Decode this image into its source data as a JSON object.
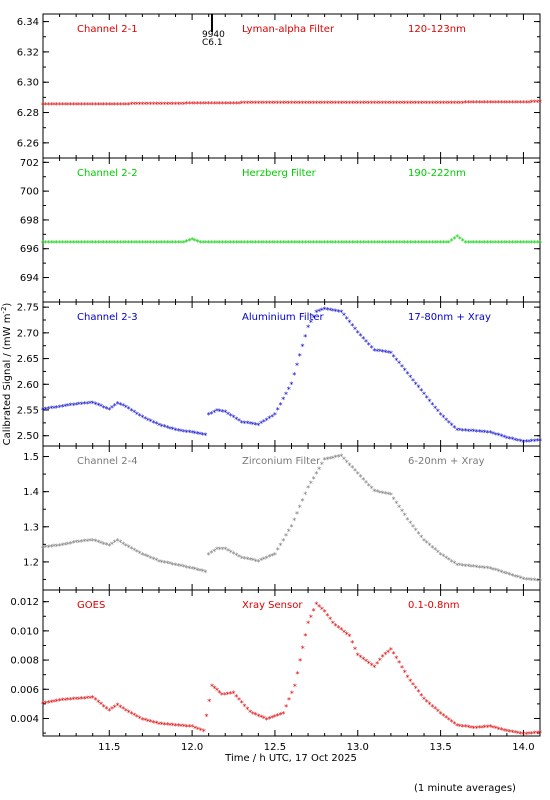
{
  "x_axis_label": "Time / h UTC, 17 Oct 2025",
  "y_axis_label": "Calibrated Signal / (mW m",
  "y_axis_label_sup": "-2",
  "y_axis_label_end": ")",
  "footnote": "(1 minute averages)",
  "marker": {
    "time": 12.12,
    "label_top": "9940",
    "label_bottom": "C6.1"
  },
  "x_ticks": [
    "11.5",
    "12.0",
    "12.5",
    "13.0",
    "13.5",
    "14.0"
  ],
  "chart_data": [
    {
      "type": "scatter",
      "title": "Channel 2-1",
      "filter": "Lyman-alpha Filter",
      "band": "120-123nm",
      "color": "#dd0000",
      "xlim": [
        11.1,
        14.1
      ],
      "ylim": [
        6.25,
        6.345
      ],
      "yticks": [
        "6.26",
        "6.28",
        "6.30",
        "6.32",
        "6.34"
      ],
      "x": [
        11.1,
        11.5,
        12.0,
        12.5,
        13.0,
        13.5,
        14.1
      ],
      "y": [
        6.285,
        6.285,
        6.2855,
        6.286,
        6.286,
        6.286,
        6.2865
      ]
    },
    {
      "type": "scatter",
      "title": "Channel 2-2",
      "filter": "Herzberg Filter",
      "band": "190-222nm",
      "color": "#00cc00",
      "xlim": [
        11.1,
        14.1
      ],
      "ylim": [
        692.3,
        702.3
      ],
      "yticks": [
        "694",
        "696",
        "698",
        "700",
        "702"
      ],
      "x": [
        11.1,
        11.5,
        11.95,
        12.0,
        12.05,
        12.5,
        13.0,
        13.55,
        13.6,
        13.65,
        14.1
      ],
      "y": [
        696.4,
        696.4,
        696.4,
        696.6,
        696.4,
        696.4,
        696.4,
        696.4,
        696.8,
        696.4,
        696.4
      ]
    },
    {
      "type": "scatter",
      "title": "Channel 2-3",
      "filter": "Aluminium Filter",
      "band": "17-80nm + Xray",
      "color": "#0000cc",
      "xlim": [
        11.1,
        14.1
      ],
      "ylim": [
        2.48,
        2.76
      ],
      "yticks": [
        "2.50",
        "2.55",
        "2.60",
        "2.65",
        "2.70",
        "2.75"
      ],
      "x": [
        11.1,
        11.2,
        11.3,
        11.4,
        11.5,
        11.55,
        11.6,
        11.7,
        11.8,
        11.9,
        12.0,
        12.08,
        12.1,
        12.15,
        12.2,
        12.3,
        12.4,
        12.5,
        12.6,
        12.7,
        12.75,
        12.8,
        12.9,
        13.0,
        13.1,
        13.2,
        13.3,
        13.4,
        13.5,
        13.6,
        13.7,
        13.8,
        13.9,
        14.0,
        14.1
      ],
      "y": [
        2.55,
        2.555,
        2.56,
        2.563,
        2.55,
        2.562,
        2.555,
        2.535,
        2.52,
        2.51,
        2.505,
        2.5,
        2.54,
        2.548,
        2.545,
        2.525,
        2.52,
        2.54,
        2.6,
        2.71,
        2.74,
        2.745,
        2.74,
        2.7,
        2.665,
        2.66,
        2.62,
        2.58,
        2.54,
        2.51,
        2.508,
        2.505,
        2.495,
        2.487,
        2.49
      ]
    },
    {
      "type": "scatter",
      "title": "Channel 2-4",
      "filter": "Zirconium Filter",
      "band": "6-20nm + Xray",
      "color": "#7a7a7a",
      "xlim": [
        11.1,
        14.1
      ],
      "ylim": [
        1.12,
        1.53
      ],
      "yticks": [
        "1.2",
        "1.3",
        "1.4",
        "1.5"
      ],
      "x": [
        11.1,
        11.2,
        11.3,
        11.4,
        11.5,
        11.55,
        11.6,
        11.7,
        11.8,
        11.9,
        12.0,
        12.08,
        12.1,
        12.15,
        12.2,
        12.3,
        12.4,
        12.5,
        12.6,
        12.7,
        12.8,
        12.9,
        13.0,
        13.1,
        13.2,
        13.3,
        13.4,
        13.5,
        13.6,
        13.7,
        13.8,
        13.9,
        14.0,
        14.1
      ],
      "y": [
        1.24,
        1.245,
        1.255,
        1.26,
        1.245,
        1.26,
        1.245,
        1.22,
        1.2,
        1.19,
        1.18,
        1.17,
        1.22,
        1.235,
        1.235,
        1.21,
        1.2,
        1.22,
        1.3,
        1.41,
        1.49,
        1.5,
        1.45,
        1.4,
        1.39,
        1.32,
        1.26,
        1.22,
        1.19,
        1.185,
        1.18,
        1.165,
        1.15,
        1.145
      ]
    },
    {
      "type": "scatter",
      "title": "GOES",
      "filter": "Xray Sensor",
      "band": "0.1-0.8nm",
      "color": "#dd0000",
      "xlim": [
        11.1,
        14.1
      ],
      "ylim": [
        0.0028,
        0.0128
      ],
      "yticks": [
        "0.004",
        "0.006",
        "0.008",
        "0.010",
        "0.012"
      ],
      "x": [
        11.1,
        11.2,
        11.3,
        11.4,
        11.5,
        11.55,
        11.6,
        11.7,
        11.8,
        11.9,
        12.0,
        12.07,
        12.12,
        12.18,
        12.25,
        12.35,
        12.45,
        12.55,
        12.62,
        12.7,
        12.75,
        12.8,
        12.85,
        12.95,
        13.0,
        13.1,
        13.15,
        13.2,
        13.25,
        13.3,
        13.4,
        13.5,
        13.6,
        13.7,
        13.8,
        13.9,
        14.0,
        14.1
      ],
      "y": [
        0.005,
        0.0052,
        0.0053,
        0.0054,
        0.0045,
        0.0049,
        0.0045,
        0.0039,
        0.0036,
        0.0035,
        0.0034,
        0.0031,
        0.0062,
        0.0056,
        0.0057,
        0.0044,
        0.0039,
        0.0043,
        0.0062,
        0.0105,
        0.0118,
        0.0113,
        0.0105,
        0.0096,
        0.0083,
        0.0075,
        0.0082,
        0.0087,
        0.0078,
        0.0068,
        0.0053,
        0.0043,
        0.0035,
        0.0033,
        0.0034,
        0.0031,
        0.0029,
        0.003
      ]
    }
  ]
}
